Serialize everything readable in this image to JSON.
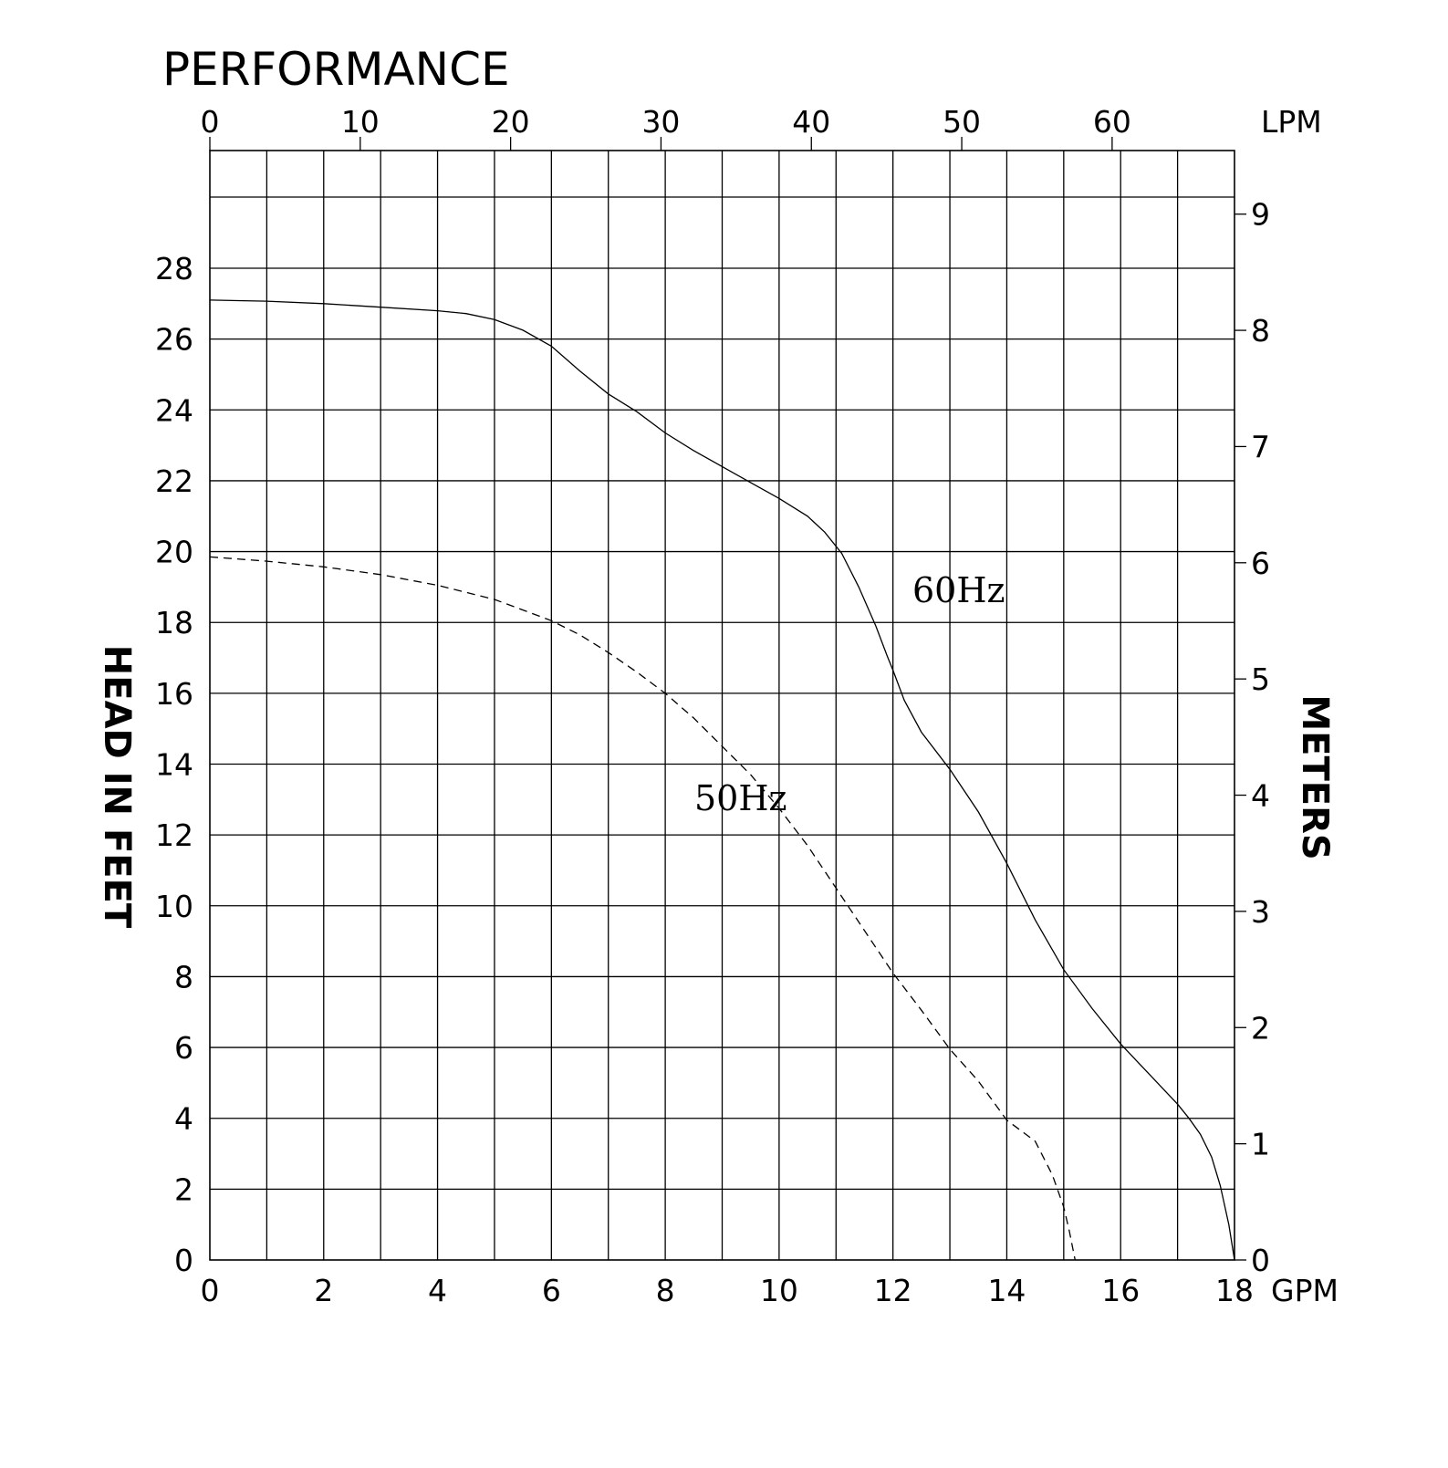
{
  "chart_data": {
    "type": "line",
    "title": "PERFORMANCE",
    "xlabel": "GPM",
    "x2label": "LPM",
    "ylabel": "HEAD IN FEET",
    "y2label": "METERS",
    "xlim": [
      0,
      18
    ],
    "ylim": [
      0,
      28
    ],
    "x_ticks": [
      "0",
      "2",
      "4",
      "6",
      "8",
      "10",
      "12",
      "14",
      "16",
      "18"
    ],
    "x2_ticks": [
      "0",
      "10",
      "20",
      "30",
      "40",
      "50",
      "60"
    ],
    "y_ticks": [
      "0",
      "2",
      "4",
      "6",
      "8",
      "10",
      "12",
      "14",
      "16",
      "18",
      "20",
      "22",
      "24",
      "26",
      "28"
    ],
    "y2_ticks": [
      "0",
      "1",
      "2",
      "3",
      "4",
      "5",
      "6",
      "7",
      "8",
      "9"
    ],
    "grid": true,
    "series": [
      {
        "name": "60Hz",
        "style": "solid",
        "x": [
          0,
          1,
          2,
          3,
          4,
          4.5,
          5,
          5.5,
          6,
          6.5,
          7,
          7.5,
          8,
          8.5,
          9,
          9.5,
          10,
          10.5,
          10.8,
          11.1,
          11.4,
          11.7,
          11.9,
          12.0,
          12.2,
          12.5,
          13,
          13.5,
          14,
          14.5,
          15,
          15.5,
          16,
          16.5,
          17,
          17.2,
          17.4,
          17.6,
          17.75,
          17.9,
          18.0
        ],
        "y": [
          27.1,
          27.07,
          27.0,
          26.9,
          26.8,
          26.72,
          26.55,
          26.25,
          25.8,
          25.1,
          24.45,
          23.95,
          23.35,
          22.85,
          22.4,
          21.95,
          21.5,
          21.0,
          20.55,
          19.95,
          19.0,
          17.9,
          17.05,
          16.65,
          15.8,
          14.9,
          13.85,
          12.65,
          11.2,
          9.6,
          8.2,
          7.1,
          6.1,
          5.25,
          4.4,
          4.0,
          3.55,
          2.9,
          2.1,
          1.0,
          0
        ]
      },
      {
        "name": "50Hz",
        "style": "dashed",
        "x": [
          0,
          1,
          2,
          3,
          4,
          5,
          5.5,
          6,
          6.5,
          7,
          7.5,
          8,
          8.5,
          9,
          9.5,
          10,
          10.5,
          11,
          11.5,
          12,
          12.5,
          13,
          13.5,
          14,
          14.5,
          14.8,
          15.0,
          15.1,
          15.15,
          15.2
        ],
        "y": [
          19.85,
          19.73,
          19.57,
          19.35,
          19.05,
          18.65,
          18.35,
          18.05,
          17.65,
          17.15,
          16.6,
          16.0,
          15.3,
          14.5,
          13.7,
          12.75,
          11.7,
          10.5,
          9.3,
          8.1,
          7.05,
          5.95,
          5.05,
          3.95,
          3.35,
          2.4,
          1.5,
          0.8,
          0.4,
          0
        ]
      }
    ],
    "annotations": [
      "60Hz",
      "50Hz"
    ]
  }
}
